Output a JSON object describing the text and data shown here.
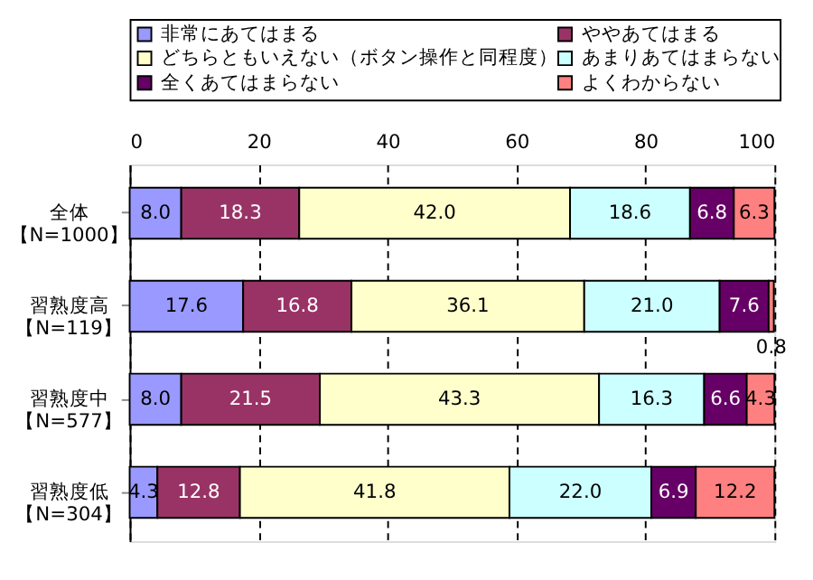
{
  "chart_data": {
    "type": "bar",
    "orientation": "horizontal",
    "stacked": true,
    "grid": "x",
    "legend": "top",
    "categories": [
      "全体【N=1000】",
      "習熟度高【N=119】",
      "習熟度中【N=577】",
      "習熟度低【N=304】"
    ],
    "xlim": [
      0,
      100
    ],
    "xticks": [
      0,
      20,
      40,
      60,
      80,
      100
    ],
    "series": [
      {
        "name": "非常にあてはまる",
        "color": "#9999ff",
        "values": [
          8.0,
          17.6,
          8.0,
          4.3
        ],
        "value_labels": [
          "8.0",
          "17.6",
          "8.0",
          "4.3"
        ]
      },
      {
        "name": "ややあてはまる",
        "color": "#993366",
        "values": [
          18.3,
          16.8,
          21.5,
          12.8
        ],
        "value_labels": [
          "18.3",
          "16.8",
          "21.5",
          "12.8"
        ]
      },
      {
        "name": "どちらともいえない（ボタン操作と同程度）",
        "color": "#ffffcc",
        "values": [
          42.0,
          36.1,
          43.3,
          41.8
        ],
        "value_labels": [
          "42.0",
          "36.1",
          "43.3",
          "41.8"
        ]
      },
      {
        "name": "あまりあてはまらない",
        "color": "#ccffff",
        "values": [
          18.6,
          21.0,
          16.3,
          22.0
        ],
        "value_labels": [
          "18.6",
          "21.0",
          "16.3",
          "22.0"
        ]
      },
      {
        "name": "全くあてはまらない",
        "color": "#660066",
        "values": [
          6.8,
          7.6,
          6.6,
          6.9
        ],
        "value_labels": [
          "6.8",
          "7.6",
          "6.6",
          "6.9"
        ]
      },
      {
        "name": "よくわからない",
        "color": "#ff8080",
        "values": [
          6.3,
          0.8,
          4.3,
          12.2
        ],
        "value_labels": [
          "6.3",
          "0.8",
          "4.3",
          "12.2"
        ]
      }
    ]
  }
}
